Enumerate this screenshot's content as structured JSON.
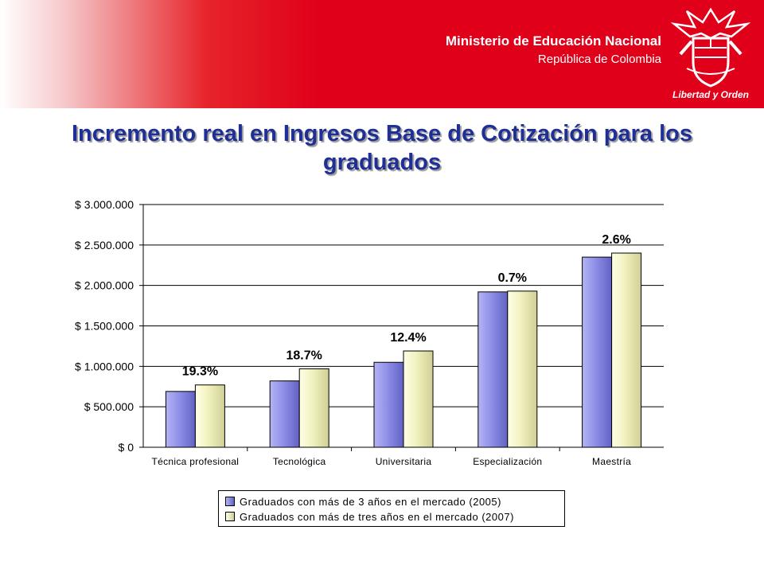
{
  "header": {
    "ministry_line1": "Ministerio de Educación Nacional",
    "ministry_line2": "República de Colombia",
    "seal_motto": "Libertad y Orden",
    "banner_color": "#e0001a"
  },
  "chart_data": {
    "type": "bar",
    "title": "Incremento real en Ingresos Base de Cotización para los graduados",
    "categories": [
      "Técnica profesional",
      "Tecnológica",
      "Universitaria",
      "Especialización",
      "Maestría"
    ],
    "series": [
      {
        "name": "Graduados con más de 3 años en el mercado (2005)",
        "values": [
          690000,
          820000,
          1050000,
          1920000,
          2350000
        ],
        "color": "#8f8fe8"
      },
      {
        "name": "Graduados con más de tres años en el mercado (2007)",
        "values": [
          770000,
          970000,
          1190000,
          1930000,
          2400000
        ],
        "color": "#f1f1be"
      }
    ],
    "annotations": [
      "19.3%",
      "18.7%",
      "12.4%",
      "0.7%",
      "2.6%"
    ],
    "ylim": [
      0,
      3000000
    ],
    "yticks": [
      0,
      500000,
      1000000,
      1500000,
      2000000,
      2500000,
      3000000
    ],
    "ytick_labels": [
      "$ 0",
      "$ 500.000",
      "$ 1.000.000",
      "$ 1.500.000",
      "$ 2.000.000",
      "$ 2.500.000",
      "$ 3.000.000"
    ],
    "xlabel": "",
    "ylabel": "",
    "grid": true,
    "legend_position": "bottom"
  }
}
